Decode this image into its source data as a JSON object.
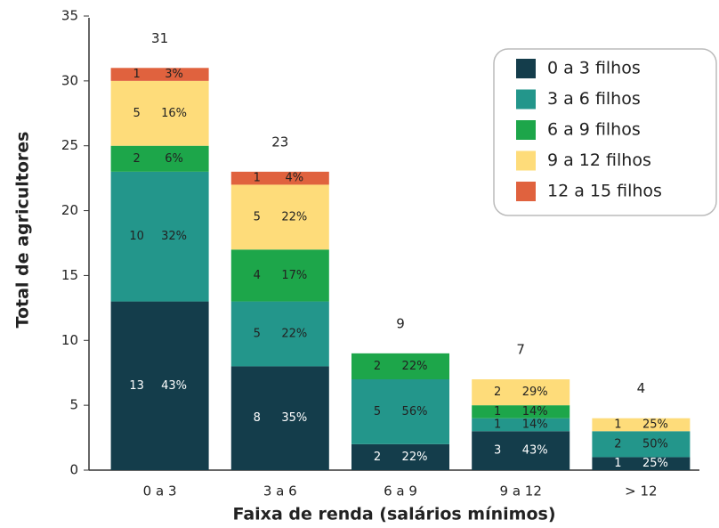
{
  "chart_data": {
    "type": "stacked_bar",
    "ylabel": "Total de agricultores",
    "xlabel": "Faixa de renda (salários mínimos)",
    "categories": [
      "0 a 3",
      "3 a 6",
      "6 a 9",
      "9 a 12",
      "> 12"
    ],
    "totals": [
      31,
      23,
      9,
      7,
      4
    ],
    "series": [
      {
        "name": "0 a 3 filhos",
        "color": "#143d4b",
        "values": [
          13,
          8,
          2,
          3,
          1
        ],
        "shares": [
          "43%",
          "35%",
          "22%",
          "43%",
          "25%"
        ]
      },
      {
        "name": "3 a 6 filhos",
        "color": "#23968b",
        "values": [
          10,
          5,
          5,
          1,
          2
        ],
        "shares": [
          "32%",
          "22%",
          "56%",
          "14%",
          "50%"
        ]
      },
      {
        "name": "6 a 9 filhos",
        "color": "#1da64a",
        "values": [
          2,
          4,
          2,
          1,
          null
        ],
        "shares": [
          "6%",
          "17%",
          "22%",
          "14%",
          null
        ]
      },
      {
        "name": "9 a 12 filhos",
        "color": "#fedc7a",
        "values": [
          5,
          5,
          null,
          2,
          1
        ],
        "shares": [
          "16%",
          "22%",
          null,
          "29%",
          "25%"
        ]
      },
      {
        "name": "12 a 15 filhos",
        "color": "#e0623e",
        "values": [
          1,
          1,
          null,
          null,
          null
        ],
        "shares": [
          "3%",
          "4%",
          null,
          null,
          null
        ]
      }
    ],
    "ylim": [
      0,
      35
    ],
    "yticks": [
      0,
      5,
      10,
      15,
      20,
      25,
      30,
      35
    ],
    "grid": false,
    "legend": "top-right"
  }
}
